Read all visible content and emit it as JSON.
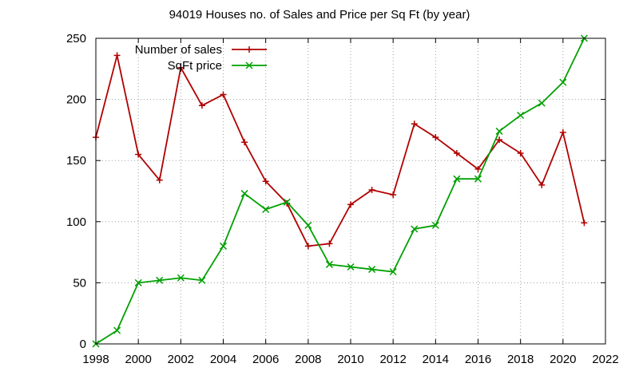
{
  "chart_data": {
    "type": "line",
    "title": "94019 Houses no. of Sales and Price per Sq Ft (by year)",
    "xlabel": "",
    "ylabel": "",
    "xlim": [
      1998,
      2022
    ],
    "ylim": [
      0,
      250
    ],
    "x_ticks": [
      1998,
      2000,
      2002,
      2004,
      2006,
      2008,
      2010,
      2012,
      2014,
      2016,
      2018,
      2020,
      2022
    ],
    "y_ticks": [
      0,
      50,
      100,
      150,
      200,
      250
    ],
    "grid": true,
    "legend_position": "top-left",
    "x": [
      1998,
      1999,
      2000,
      2001,
      2002,
      2003,
      2004,
      2005,
      2006,
      2007,
      2008,
      2009,
      2010,
      2011,
      2012,
      2013,
      2014,
      2015,
      2016,
      2017,
      2018,
      2019,
      2020,
      2021
    ],
    "series": [
      {
        "name": "Number of sales",
        "color": "#b00000",
        "marker": "plus",
        "values": [
          169,
          236,
          155,
          134,
          226,
          195,
          204,
          165,
          133,
          115,
          80,
          82,
          114,
          126,
          122,
          180,
          169,
          156,
          143,
          167,
          156,
          130,
          173,
          99
        ]
      },
      {
        "name": "SqFt price",
        "color": "#00a000",
        "marker": "cross",
        "values": [
          0,
          11,
          50,
          52,
          54,
          52,
          80,
          123,
          110,
          116,
          97,
          65,
          63,
          61,
          59,
          94,
          97,
          135,
          135,
          174,
          187,
          197,
          214,
          250
        ]
      }
    ]
  }
}
